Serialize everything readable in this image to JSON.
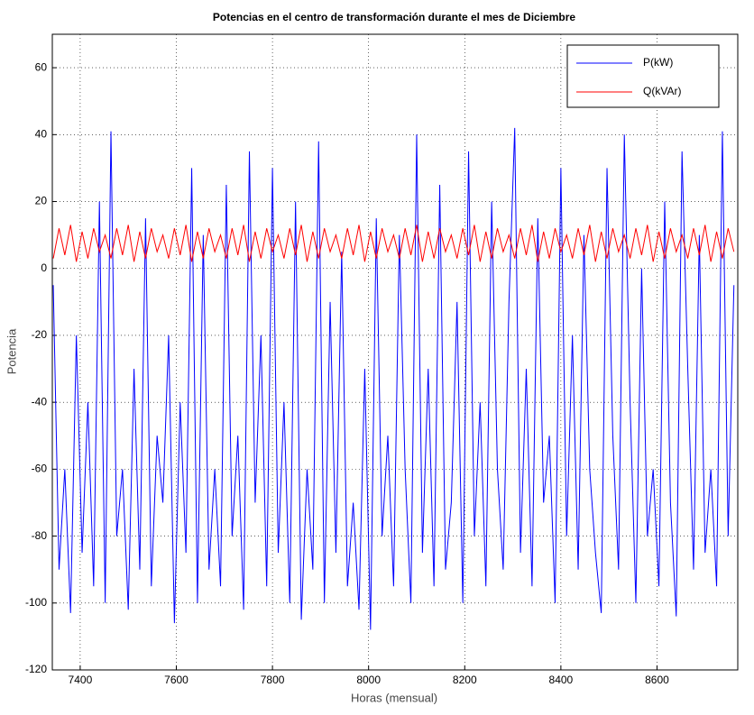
{
  "chart_data": {
    "type": "line",
    "title": "Potencias en el centro de transformación durante el mes de Diciembre",
    "x_label": "Horas (mensual)",
    "y_label": "Potencia",
    "x": [
      7344,
      7356,
      7368,
      7380,
      7392,
      7404,
      7416,
      7428,
      7440,
      7452,
      7464,
      7476,
      7488,
      7500,
      7512,
      7524,
      7536,
      7548,
      7560,
      7572,
      7584,
      7596,
      7608,
      7620,
      7632,
      7644,
      7656,
      7668,
      7680,
      7692,
      7704,
      7716,
      7728,
      7740,
      7752,
      7764,
      7776,
      7788,
      7800,
      7812,
      7824,
      7836,
      7848,
      7860,
      7872,
      7884,
      7896,
      7908,
      7920,
      7932,
      7944,
      7956,
      7968,
      7980,
      7992,
      8004,
      8016,
      8028,
      8040,
      8052,
      8064,
      8076,
      8088,
      8100,
      8112,
      8124,
      8136,
      8148,
      8160,
      8172,
      8184,
      8196,
      8208,
      8220,
      8232,
      8244,
      8256,
      8268,
      8280,
      8292,
      8304,
      8316,
      8328,
      8340,
      8352,
      8364,
      8376,
      8388,
      8400,
      8412,
      8424,
      8436,
      8448,
      8460,
      8472,
      8484,
      8496,
      8508,
      8520,
      8532,
      8544,
      8556,
      8568,
      8580,
      8592,
      8604,
      8616,
      8628,
      8640,
      8652,
      8664,
      8676,
      8688,
      8700,
      8712,
      8724,
      8736,
      8748,
      8760
    ],
    "series": [
      {
        "name": "P(kW)",
        "color": "#0000ff",
        "values": [
          -5,
          -90,
          -60,
          -103,
          -20,
          -85,
          -40,
          -95,
          20,
          -100,
          41,
          -80,
          -60,
          -102,
          -30,
          -90,
          15,
          -95,
          -50,
          -70,
          -20,
          -106,
          -40,
          -85,
          30,
          -100,
          10,
          -90,
          -60,
          -95,
          25,
          -80,
          -50,
          -102,
          35,
          -70,
          -20,
          -95,
          30,
          -85,
          -40,
          -100,
          20,
          -105,
          -60,
          -90,
          38,
          -100,
          -10,
          -85,
          5,
          -95,
          -70,
          -102,
          -30,
          -108,
          15,
          -80,
          -50,
          -95,
          10,
          -60,
          -100,
          40,
          -85,
          -30,
          -95,
          25,
          -90,
          -70,
          -10,
          -100,
          35,
          -80,
          -40,
          -95,
          20,
          -60,
          -90,
          -10,
          42,
          -85,
          -30,
          -95,
          15,
          -70,
          -50,
          -100,
          30,
          -80,
          -20,
          -90,
          10,
          -60,
          -85,
          -103,
          30,
          -50,
          -90,
          40,
          -40,
          -100,
          0,
          -80,
          -60,
          -95,
          20,
          -70,
          -104,
          35,
          -30,
          -90,
          10,
          -85,
          -60,
          -95,
          41,
          -80,
          -5
        ]
      },
      {
        "name": "Q(kVAr)",
        "color": "#ff0000",
        "values": [
          3,
          12,
          4,
          13,
          2,
          11,
          3,
          12,
          5,
          10,
          3,
          12,
          4,
          13,
          2,
          11,
          3,
          12,
          5,
          10,
          3,
          12,
          4,
          13,
          2,
          11,
          3,
          12,
          5,
          10,
          3,
          12,
          4,
          13,
          2,
          11,
          3,
          12,
          5,
          10,
          3,
          12,
          4,
          13,
          2,
          11,
          3,
          12,
          5,
          10,
          3,
          12,
          4,
          13,
          2,
          11,
          3,
          12,
          5,
          10,
          3,
          12,
          4,
          13,
          2,
          11,
          3,
          12,
          5,
          10,
          3,
          12,
          4,
          13,
          2,
          11,
          3,
          12,
          5,
          10,
          3,
          12,
          4,
          13,
          2,
          11,
          3,
          12,
          5,
          10,
          3,
          12,
          4,
          13,
          2,
          11,
          3,
          12,
          5,
          10,
          3,
          12,
          4,
          13,
          2,
          11,
          3,
          12,
          5,
          10,
          3,
          12,
          4,
          13,
          2,
          11,
          3,
          12,
          5
        ]
      }
    ],
    "xlim": [
      7342,
      8768
    ],
    "ylim": [
      -120,
      70
    ],
    "xticks": [
      7400,
      7600,
      7800,
      8000,
      8200,
      8400,
      8600
    ],
    "yticks": [
      -120,
      -100,
      -80,
      -60,
      -40,
      -20,
      0,
      20,
      40,
      60
    ],
    "grid": true,
    "legend": "upper right"
  }
}
